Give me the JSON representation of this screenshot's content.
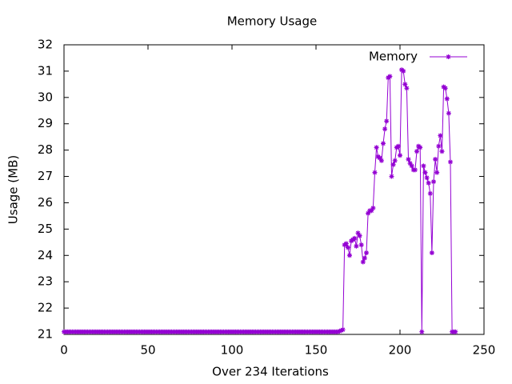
{
  "chart_data": {
    "type": "line",
    "title": "Memory Usage",
    "x_label": "Over 234 Iterations",
    "y_label": "Usage (MB)",
    "xlim": [
      0,
      250
    ],
    "xticks": [
      0,
      50,
      100,
      150,
      200,
      250
    ],
    "ylim": [
      21,
      32
    ],
    "yticks": [
      21,
      22,
      23,
      24,
      25,
      26,
      27,
      28,
      29,
      30,
      31,
      32
    ],
    "grid": false,
    "legend": "top-right",
    "x": [
      0,
      1,
      2,
      3,
      4,
      5,
      6,
      7,
      8,
      9,
      10,
      11,
      12,
      13,
      14,
      15,
      16,
      17,
      18,
      19,
      20,
      21,
      22,
      23,
      24,
      25,
      26,
      27,
      28,
      29,
      30,
      31,
      32,
      33,
      34,
      35,
      36,
      37,
      38,
      39,
      40,
      41,
      42,
      43,
      44,
      45,
      46,
      47,
      48,
      49,
      50,
      51,
      52,
      53,
      54,
      55,
      56,
      57,
      58,
      59,
      60,
      61,
      62,
      63,
      64,
      65,
      66,
      67,
      68,
      69,
      70,
      71,
      72,
      73,
      74,
      75,
      76,
      77,
      78,
      79,
      80,
      81,
      82,
      83,
      84,
      85,
      86,
      87,
      88,
      89,
      90,
      91,
      92,
      93,
      94,
      95,
      96,
      97,
      98,
      99,
      100,
      101,
      102,
      103,
      104,
      105,
      106,
      107,
      108,
      109,
      110,
      111,
      112,
      113,
      114,
      115,
      116,
      117,
      118,
      119,
      120,
      121,
      122,
      123,
      124,
      125,
      126,
      127,
      128,
      129,
      130,
      131,
      132,
      133,
      134,
      135,
      136,
      137,
      138,
      139,
      140,
      141,
      142,
      143,
      144,
      145,
      146,
      147,
      148,
      149,
      150,
      151,
      152,
      153,
      154,
      155,
      156,
      157,
      158,
      159,
      160,
      161,
      162,
      163,
      164,
      165,
      166,
      167,
      168,
      169,
      170,
      171,
      172,
      173,
      174,
      175,
      176,
      177,
      178,
      179,
      180,
      181,
      182,
      183,
      184,
      185,
      186,
      187,
      188,
      189,
      190,
      191,
      192,
      193,
      194,
      195,
      196,
      197,
      198,
      199,
      200,
      201,
      202,
      203,
      204,
      205,
      206,
      207,
      208,
      209,
      210,
      211,
      212,
      213,
      214,
      215,
      216,
      217,
      218,
      219,
      220,
      221,
      222,
      223,
      224,
      225,
      226,
      227,
      228,
      229,
      230,
      231,
      232,
      233
    ],
    "series": [
      {
        "name": "Memory",
        "color": "#9400d3",
        "values": [
          21.1,
          21.1,
          21.1,
          21.1,
          21.1,
          21.1,
          21.1,
          21.1,
          21.1,
          21.1,
          21.1,
          21.1,
          21.1,
          21.1,
          21.1,
          21.1,
          21.1,
          21.1,
          21.1,
          21.1,
          21.1,
          21.1,
          21.1,
          21.1,
          21.1,
          21.1,
          21.1,
          21.1,
          21.1,
          21.1,
          21.1,
          21.1,
          21.1,
          21.1,
          21.1,
          21.1,
          21.1,
          21.1,
          21.1,
          21.1,
          21.1,
          21.1,
          21.1,
          21.1,
          21.1,
          21.1,
          21.1,
          21.1,
          21.1,
          21.1,
          21.1,
          21.1,
          21.1,
          21.1,
          21.1,
          21.1,
          21.1,
          21.1,
          21.1,
          21.1,
          21.1,
          21.1,
          21.1,
          21.1,
          21.1,
          21.1,
          21.1,
          21.1,
          21.1,
          21.1,
          21.1,
          21.1,
          21.1,
          21.1,
          21.1,
          21.1,
          21.1,
          21.1,
          21.1,
          21.1,
          21.1,
          21.1,
          21.1,
          21.1,
          21.1,
          21.1,
          21.1,
          21.1,
          21.1,
          21.1,
          21.1,
          21.1,
          21.1,
          21.1,
          21.1,
          21.1,
          21.1,
          21.1,
          21.1,
          21.1,
          21.1,
          21.1,
          21.1,
          21.1,
          21.1,
          21.1,
          21.1,
          21.1,
          21.1,
          21.1,
          21.1,
          21.1,
          21.1,
          21.1,
          21.1,
          21.1,
          21.1,
          21.1,
          21.1,
          21.1,
          21.1,
          21.1,
          21.1,
          21.1,
          21.1,
          21.1,
          21.1,
          21.1,
          21.1,
          21.1,
          21.1,
          21.1,
          21.1,
          21.1,
          21.1,
          21.1,
          21.1,
          21.1,
          21.1,
          21.1,
          21.1,
          21.1,
          21.1,
          21.1,
          21.1,
          21.1,
          21.1,
          21.1,
          21.1,
          21.1,
          21.1,
          21.1,
          21.1,
          21.1,
          21.1,
          21.1,
          21.1,
          21.1,
          21.1,
          21.1,
          21.1,
          21.1,
          21.1,
          21.1,
          21.12,
          21.15,
          21.18,
          24.4,
          24.45,
          24.3,
          24.0,
          24.55,
          24.6,
          24.65,
          24.35,
          24.85,
          24.75,
          24.4,
          23.75,
          23.9,
          24.1,
          25.6,
          25.7,
          25.7,
          25.8,
          27.15,
          28.1,
          27.75,
          27.7,
          27.6,
          28.25,
          28.8,
          29.1,
          30.75,
          30.8,
          27.0,
          27.45,
          27.6,
          28.1,
          28.15,
          27.8,
          31.05,
          31.0,
          30.5,
          30.35,
          27.65,
          27.5,
          27.4,
          27.25,
          27.25,
          27.95,
          28.15,
          28.1,
          21.1,
          27.4,
          27.15,
          26.95,
          26.75,
          26.35,
          24.1,
          26.8,
          27.65,
          27.15,
          28.15,
          28.55,
          27.95,
          30.4,
          30.35,
          29.95,
          29.4,
          27.55,
          21.1,
          21.1,
          21.1
        ]
      }
    ]
  }
}
